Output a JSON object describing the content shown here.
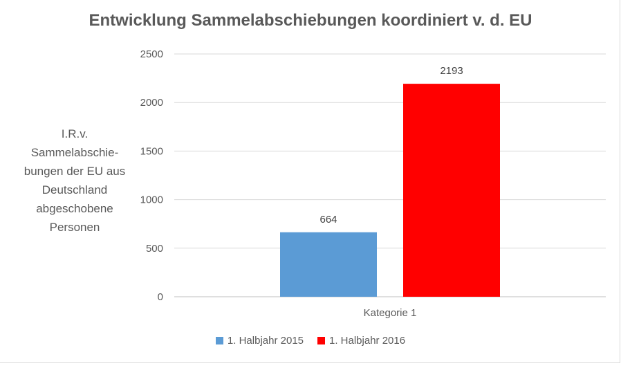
{
  "chart_data": {
    "type": "bar",
    "title": "Entwicklung Sammelabschiebungen koordiniert v. d. EU",
    "ylabel": "I.R.v.\nSammelabschie-\nbungen der EU aus\nDeutschland\nabgeschobene\nPersonen",
    "xlabel": "",
    "categories": [
      "Kategorie 1"
    ],
    "series": [
      {
        "name": "1. Halbjahr 2015",
        "values": [
          664
        ],
        "color": "#5b9bd5"
      },
      {
        "name": "1. Halbjahr 2016",
        "values": [
          2193
        ],
        "color": "#ff0000"
      }
    ],
    "ylim": [
      0,
      2500
    ],
    "yticks": [
      0,
      500,
      1000,
      1500,
      2000,
      2500
    ],
    "data_labels": true,
    "grid": true,
    "legend_position": "bottom"
  }
}
